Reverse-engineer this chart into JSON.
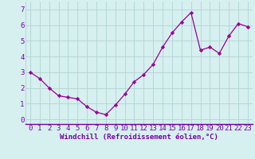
{
  "x": [
    0,
    1,
    2,
    3,
    4,
    5,
    6,
    7,
    8,
    9,
    10,
    11,
    12,
    13,
    14,
    15,
    16,
    17,
    18,
    19,
    20,
    21,
    22,
    23
  ],
  "y": [
    3.0,
    2.6,
    2.0,
    1.5,
    1.4,
    1.3,
    0.8,
    0.45,
    0.3,
    0.9,
    1.6,
    2.4,
    2.85,
    3.5,
    4.6,
    5.5,
    6.2,
    6.8,
    4.4,
    4.6,
    4.2,
    5.3,
    6.1,
    5.9
  ],
  "line_color": "#990099",
  "marker": "D",
  "marker_size": 2.2,
  "linewidth": 0.9,
  "xlabel": "Windchill (Refroidissement éolien,°C)",
  "xlim": [
    -0.5,
    23.5
  ],
  "ylim": [
    -0.3,
    7.5
  ],
  "yticks": [
    0,
    1,
    2,
    3,
    4,
    5,
    6,
    7
  ],
  "xticks": [
    0,
    1,
    2,
    3,
    4,
    5,
    6,
    7,
    8,
    9,
    10,
    11,
    12,
    13,
    14,
    15,
    16,
    17,
    18,
    19,
    20,
    21,
    22,
    23
  ],
  "bg_color": "#d6efef",
  "grid_color": "#b0d4d4",
  "xlabel_color": "#7700aa",
  "tick_color": "#7700aa",
  "xlabel_fontsize": 6.5,
  "tick_fontsize": 6.5
}
